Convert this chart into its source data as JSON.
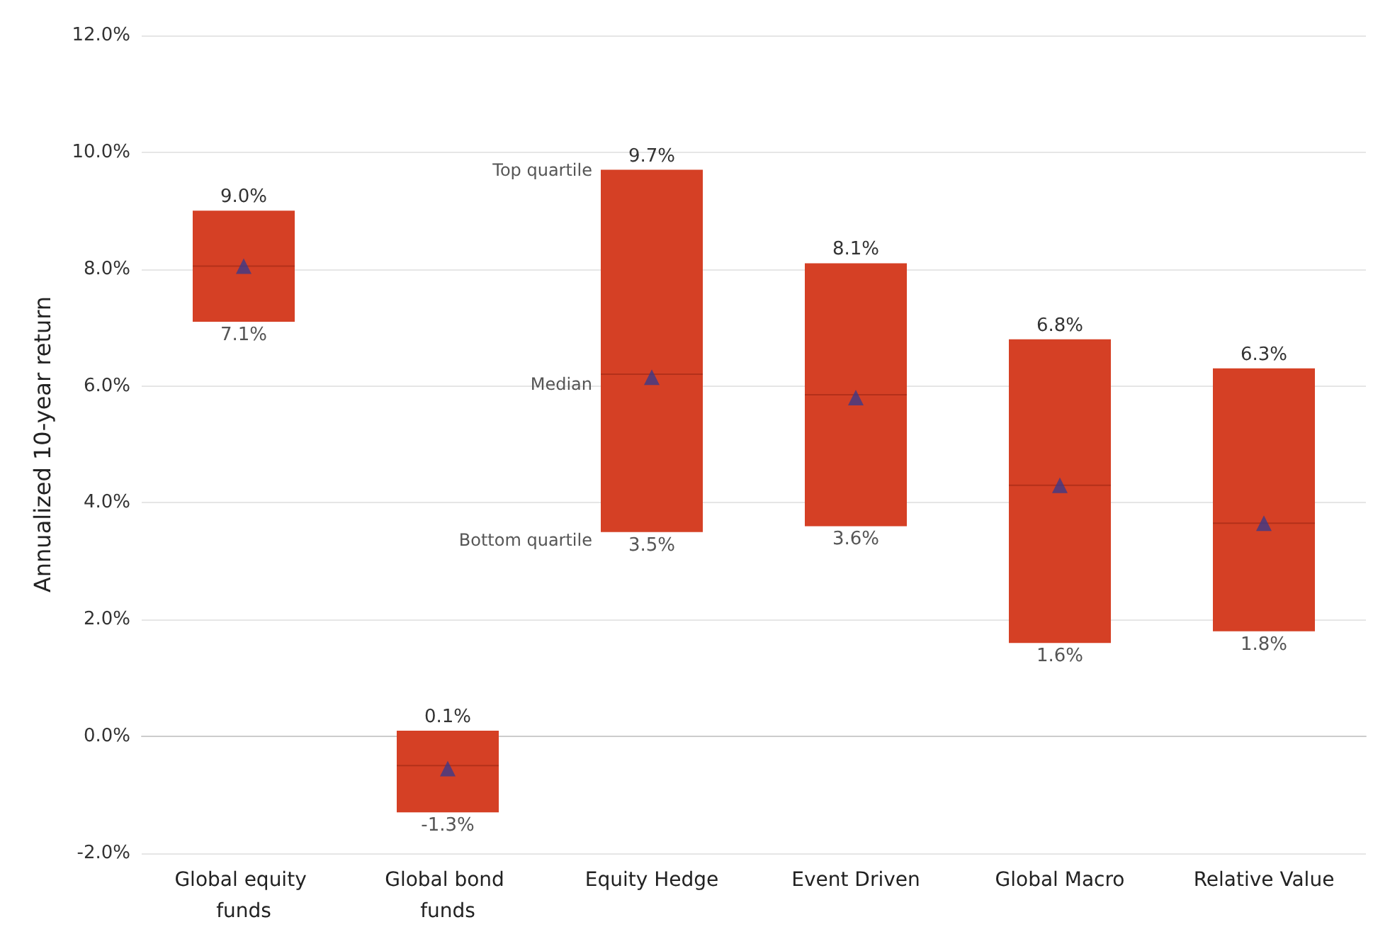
{
  "chart_data": {
    "type": "box",
    "ylabel": "Annualized 10-year return",
    "categories": [
      "Global equity funds",
      "Global bond funds",
      "Equity Hedge",
      "Event Driven",
      "Global Macro",
      "Relative Value"
    ],
    "boxes": [
      {
        "low": 7.1,
        "q1": 7.1,
        "median": 8.05,
        "q3": 9.0,
        "high": 9.0,
        "mean": 8.05
      },
      {
        "low": -1.3,
        "q1": -1.3,
        "median": -0.5,
        "q3": 0.1,
        "high": 0.1,
        "mean": -0.55
      },
      {
        "low": 3.5,
        "q1": 3.5,
        "median": 6.2,
        "q3": 9.7,
        "high": 9.7,
        "mean": 6.15
      },
      {
        "low": 3.6,
        "q1": 3.6,
        "median": 5.85,
        "q3": 8.1,
        "high": 8.1,
        "mean": 5.8
      },
      {
        "low": 1.6,
        "q1": 1.6,
        "median": 4.3,
        "q3": 6.8,
        "high": 6.8,
        "mean": 4.3
      },
      {
        "low": 1.8,
        "q1": 1.8,
        "median": 3.65,
        "q3": 6.3,
        "high": 6.3,
        "mean": 3.65
      }
    ],
    "value_labels": [
      [
        "9.0%",
        "7.1%"
      ],
      [
        "0.1%",
        "-1.3%"
      ],
      [
        "9.7%",
        "3.5%"
      ],
      [
        "8.1%",
        "3.6%"
      ],
      [
        "6.8%",
        "1.6%"
      ],
      [
        "6.3%",
        "1.8%"
      ]
    ],
    "color": "#d54025",
    "ylim": [
      -2,
      12
    ],
    "yticks": [
      {
        "value": -2,
        "label": "-2.0%"
      },
      {
        "value": 0,
        "label": "0.0%"
      },
      {
        "value": 2,
        "label": "2.0%"
      },
      {
        "value": 4,
        "label": "4.0%"
      },
      {
        "value": 6,
        "label": "6.0%"
      },
      {
        "value": 8,
        "label": "8.0%"
      },
      {
        "value": 10,
        "label": "10.0%"
      },
      {
        "value": 12,
        "label": "12.0%"
      }
    ],
    "grid": "y",
    "legend": false,
    "annotations": [
      "Top quartile",
      "Median",
      "Bottom quartile"
    ]
  }
}
